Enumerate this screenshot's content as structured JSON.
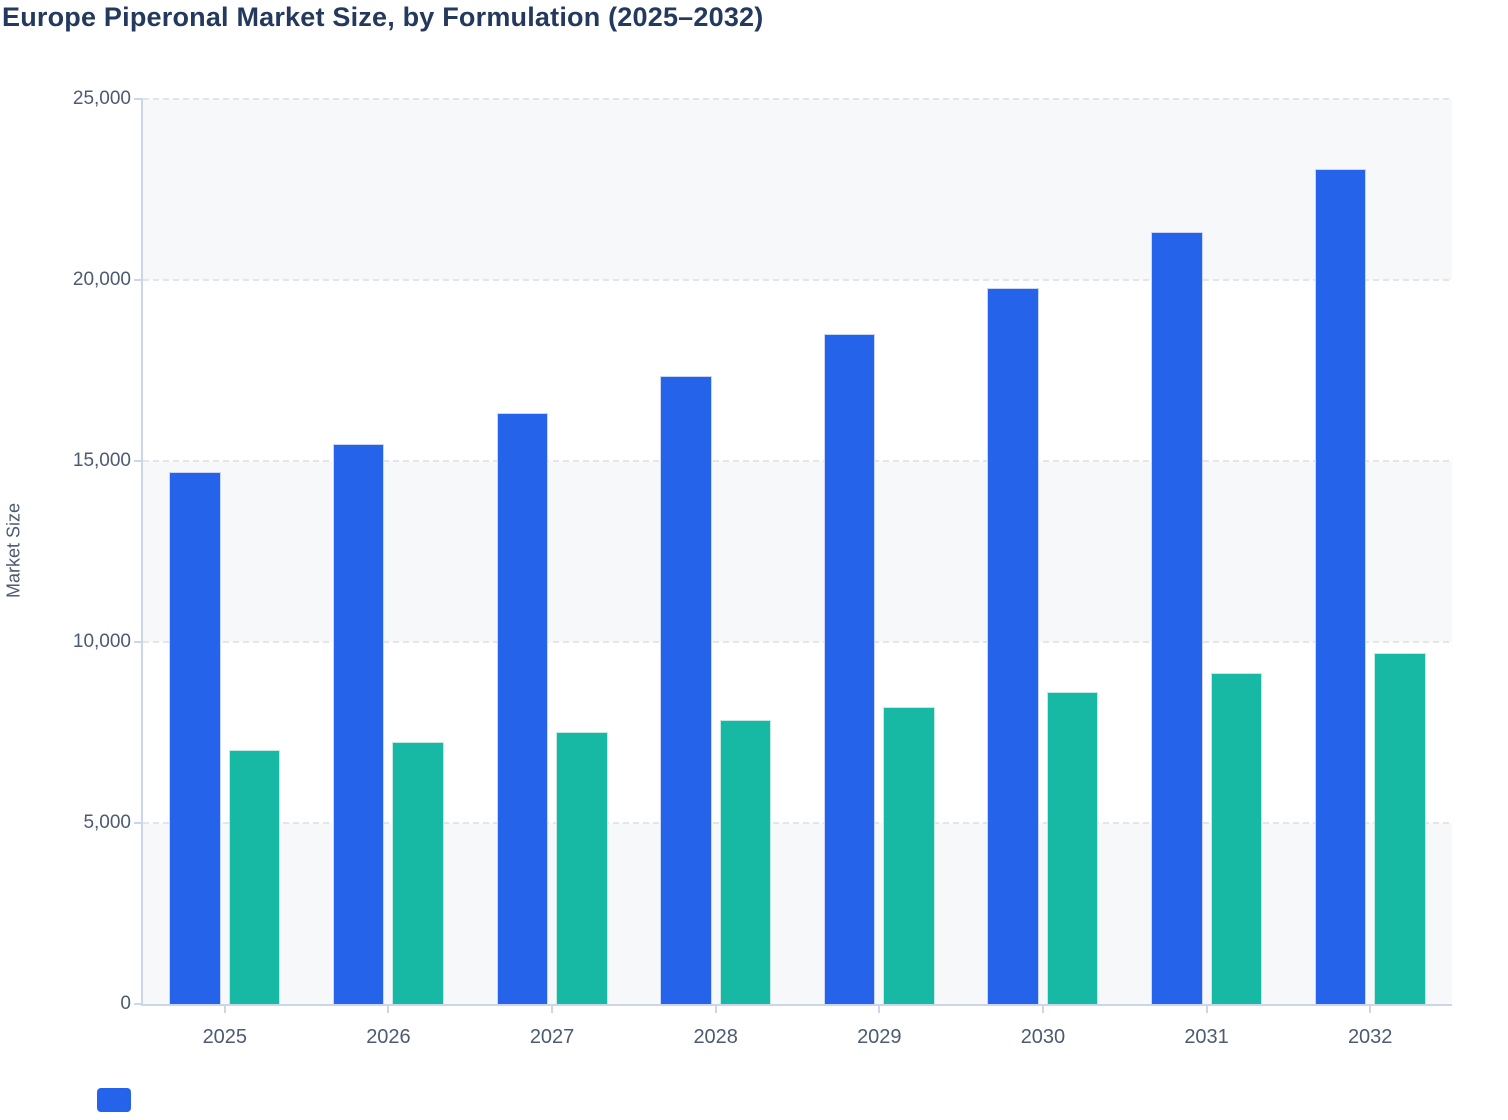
{
  "title": "Europe Piperonal Market Size, by Formulation (2025–2032)",
  "y_axis": {
    "label": "Market Size",
    "tick_labels": [
      "0",
      "5,000",
      "10,000",
      "15,000",
      "20,000",
      "25,000"
    ],
    "tick_values": [
      0,
      5000,
      10000,
      15000,
      20000,
      25000
    ]
  },
  "x_axis": {
    "tick_labels": [
      "2025",
      "2026",
      "2027",
      "2028",
      "2029",
      "2030",
      "2031",
      "2032"
    ]
  },
  "legend": {
    "visible_swatch_color": "#2563eb"
  },
  "colors": {
    "blue_series": "#2563eb",
    "teal_series": "#17b8a4",
    "blue_border": "#c9d7f5",
    "teal_border": "#c2e9e2",
    "band_fill": "#f7f8fa",
    "gridline": "#e2e5e9",
    "axis_line": "#ccd6ea",
    "tick_text": "#4c5a72",
    "title_text": "#24395e"
  },
  "chart_data": {
    "type": "bar",
    "title": "Europe Piperonal Market Size, by Formulation (2025–2032)",
    "xlabel": "",
    "ylabel": "Market Size",
    "categories": [
      "2025",
      "2026",
      "2027",
      "2028",
      "2029",
      "2030",
      "2031",
      "2032"
    ],
    "series": [
      {
        "id": "blue",
        "color": "#2563eb",
        "values": [
          14700,
          15480,
          16330,
          17340,
          18510,
          19780,
          21320,
          23060
        ]
      },
      {
        "id": "teal",
        "color": "#17b8a4",
        "values": [
          7020,
          7250,
          7520,
          7850,
          8210,
          8630,
          9130,
          9690
        ]
      }
    ],
    "ylim": [
      0,
      25000
    ],
    "ytick_step": 5000,
    "grid": "horizontal-dashed",
    "plot_bands": "alternating gray bands for 0–5k, 10k–15k, 20k–25k",
    "legend_position": "bottom-left (blue swatch only, no text visible)"
  }
}
